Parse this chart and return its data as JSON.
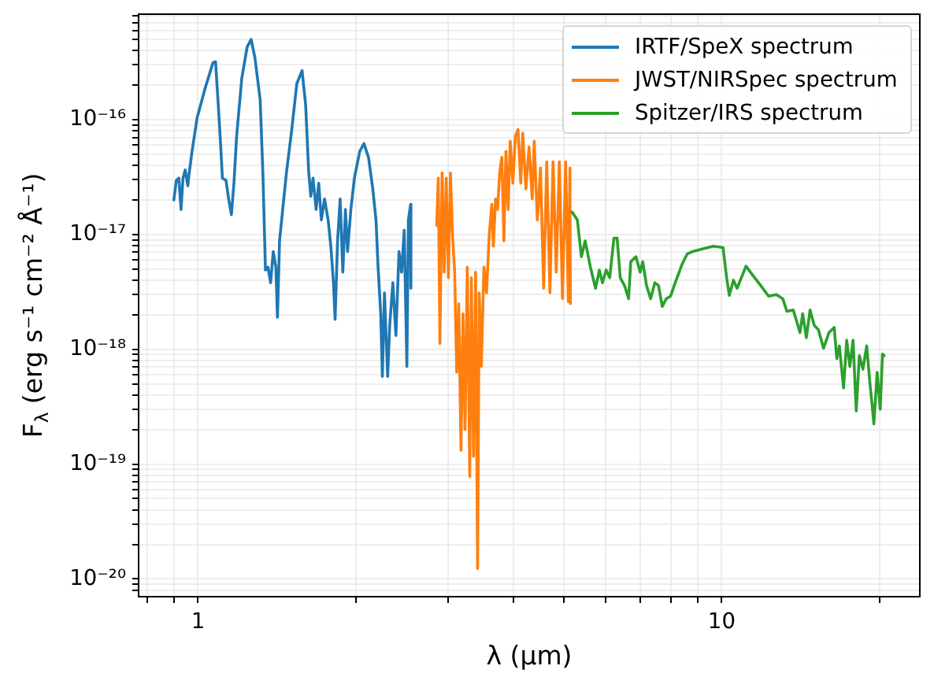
{
  "chart_data": {
    "type": "line",
    "xlabel": "λ (μm)",
    "ylabel": "F$_{λ}$ (erg s⁻¹ cm⁻² Å⁻¹)",
    "log": "xy",
    "grid": true,
    "legend": "top right",
    "xlim": [
      0.77,
      23.9
    ],
    "xticks": [
      {
        "value": 0.8,
        "label": null
      },
      {
        "value": 0.9,
        "label": null
      },
      1,
      {
        "value": 2,
        "label": null
      },
      {
        "value": 3,
        "label": null
      },
      {
        "value": 4,
        "label": null
      },
      {
        "value": 5,
        "label": null
      },
      {
        "value": 6,
        "label": null
      },
      {
        "value": 7,
        "label": null
      },
      {
        "value": 8,
        "label": null
      },
      {
        "value": 9,
        "label": null
      },
      10,
      {
        "value": 20,
        "label": null
      }
    ],
    "ylim": [
      7e-21,
      8.3e-16
    ],
    "yticks": [
      {
        "value": 8e-21,
        "label": null
      },
      {
        "value": 9e-21,
        "label": null
      },
      {
        "value": 1e-20,
        "label": "10⁻²⁰"
      },
      {
        "value": 2e-20,
        "label": null
      },
      {
        "value": 3e-20,
        "label": null
      },
      {
        "value": 4e-20,
        "label": null
      },
      {
        "value": 5e-20,
        "label": null
      },
      {
        "value": 6e-20,
        "label": null
      },
      {
        "value": 7e-20,
        "label": null
      },
      {
        "value": 8e-20,
        "label": null
      },
      {
        "value": 9e-20,
        "label": null
      },
      {
        "value": 1e-19,
        "label": "10⁻¹⁹"
      },
      {
        "value": 2e-19,
        "label": null
      },
      {
        "value": 3e-19,
        "label": null
      },
      {
        "value": 4e-19,
        "label": null
      },
      {
        "value": 5e-19,
        "label": null
      },
      {
        "value": 6e-19,
        "label": null
      },
      {
        "value": 7e-19,
        "label": null
      },
      {
        "value": 8e-19,
        "label": null
      },
      {
        "value": 9e-19,
        "label": null
      },
      {
        "value": 1e-18,
        "label": "10⁻¹⁸"
      },
      {
        "value": 2e-18,
        "label": null
      },
      {
        "value": 3e-18,
        "label": null
      },
      {
        "value": 4e-18,
        "label": null
      },
      {
        "value": 5e-18,
        "label": null
      },
      {
        "value": 6e-18,
        "label": null
      },
      {
        "value": 7e-18,
        "label": null
      },
      {
        "value": 8e-18,
        "label": null
      },
      {
        "value": 9e-18,
        "label": null
      },
      {
        "value": 1e-17,
        "label": "10⁻¹⁷"
      },
      {
        "value": 2e-17,
        "label": null
      },
      {
        "value": 3e-17,
        "label": null
      },
      {
        "value": 4e-17,
        "label": null
      },
      {
        "value": 5e-17,
        "label": null
      },
      {
        "value": 6e-17,
        "label": null
      },
      {
        "value": 7e-17,
        "label": null
      },
      {
        "value": 8e-17,
        "label": null
      },
      {
        "value": 9e-17,
        "label": null
      },
      {
        "value": 1e-16,
        "label": "10⁻¹⁶"
      },
      {
        "value": 2e-16,
        "label": null
      },
      {
        "value": 3e-16,
        "label": null
      },
      {
        "value": 4e-16,
        "label": null
      },
      {
        "value": 5e-16,
        "label": null
      },
      {
        "value": 6e-16,
        "label": null
      },
      {
        "value": 7e-16,
        "label": null
      },
      {
        "value": 8e-16,
        "label": null
      }
    ],
    "series": [
      {
        "name": "IRTF/SpeX spectrum",
        "color": "#1f77b4",
        "x": [
          0.899,
          0.909,
          0.919,
          0.928,
          0.936,
          0.945,
          0.956,
          0.962,
          0.974,
          0.996,
          1.031,
          1.068,
          1.08,
          1.093,
          1.105,
          1.113,
          1.131,
          1.144,
          1.158,
          1.171,
          1.185,
          1.212,
          1.241,
          1.263,
          1.284,
          1.314,
          1.33,
          1.345,
          1.36,
          1.376,
          1.392,
          1.408,
          1.418,
          1.431,
          1.451,
          1.475,
          1.509,
          1.544,
          1.58,
          1.605,
          1.627,
          1.642,
          1.658,
          1.681,
          1.7,
          1.72,
          1.744,
          1.772,
          1.793,
          1.814,
          1.827,
          1.847,
          1.868,
          1.89,
          1.912,
          1.93,
          1.958,
          1.989,
          2.036,
          2.074,
          2.116,
          2.156,
          2.187,
          2.207,
          2.233,
          2.249,
          2.27,
          2.302,
          2.323,
          2.355,
          2.387,
          2.42,
          2.448,
          2.476,
          2.505,
          2.522,
          2.547,
          2.55
        ],
        "values": [
          2e-17,
          2.95e-17,
          3.1e-17,
          1.65e-17,
          3.1e-17,
          3.65e-17,
          2.66e-17,
          3.45e-17,
          5.3e-17,
          1.04e-16,
          1.86e-16,
          3.14e-16,
          3.2e-16,
          1.35e-16,
          5.8e-17,
          3.1e-17,
          2.95e-17,
          2.04e-17,
          1.49e-17,
          2.8e-17,
          7.2e-17,
          2.29e-16,
          4.3e-16,
          5e-16,
          3.48e-16,
          1.5e-16,
          3.45e-17,
          4.9e-18,
          5.2e-18,
          3.8e-18,
          7.1e-18,
          5.2e-18,
          1.9e-18,
          8.8e-18,
          1.65e-17,
          3.45e-17,
          8e-17,
          2.06e-16,
          2.68e-16,
          1.35e-16,
          3.45e-17,
          2.15e-17,
          3.1e-17,
          1.65e-17,
          2.8e-17,
          1.34e-17,
          2.04e-17,
          1.34e-17,
          7.9e-18,
          3.8e-18,
          1.82e-18,
          8.8e-18,
          2.04e-17,
          4.7e-18,
          1.65e-17,
          7.1e-18,
          1.65e-17,
          3.1e-17,
          5.3e-17,
          6.2e-17,
          4.7e-17,
          2.5e-17,
          1.34e-17,
          5.2e-18,
          2.04e-18,
          5.8e-19,
          3.1e-18,
          5.8e-19,
          1.62e-18,
          3.8e-18,
          1.32e-18,
          7.1e-18,
          4.7e-18,
          1.09e-17,
          7.1e-19,
          1.34e-17,
          1.83e-17,
          3.4e-18
        ]
      },
      {
        "name": "JWST/NIRSpec spectrum",
        "color": "#ff7f0e",
        "x": [
          2.856,
          2.876,
          2.897,
          2.925,
          2.951,
          2.978,
          3.007,
          3.034,
          3.062,
          3.091,
          3.119,
          3.147,
          3.178,
          3.206,
          3.235,
          3.267,
          3.303,
          3.326,
          3.358,
          3.388,
          3.419,
          3.443,
          3.476,
          3.515,
          3.556,
          3.598,
          3.639,
          3.664,
          3.7,
          3.733,
          3.767,
          3.804,
          3.838,
          3.873,
          3.911,
          3.946,
          3.993,
          4.036,
          4.084,
          4.133,
          4.17,
          4.228,
          4.287,
          4.347,
          4.385,
          4.446,
          4.508,
          4.571,
          4.634,
          4.699,
          4.764,
          4.831,
          4.898,
          4.966,
          5.035,
          5.095,
          5.131,
          5.142
        ],
        "values": [
          1.2e-17,
          3.1e-17,
          1.12e-18,
          3.45e-17,
          4.7e-18,
          3.1e-17,
          4.2e-18,
          3.45e-17,
          9.8e-18,
          4.7e-18,
          6.3e-19,
          2.5e-18,
          1.32e-19,
          2.04e-18,
          2e-19,
          5.2e-18,
          7.8e-20,
          4.2e-18,
          1.17e-19,
          4.7e-18,
          1.23e-20,
          3.1e-18,
          7.1e-19,
          5.2e-18,
          3.1e-18,
          9.8e-18,
          1.83e-17,
          7.9e-18,
          2.04e-17,
          1.65e-17,
          3.45e-17,
          4.7e-17,
          8.8e-18,
          5.3e-17,
          1.65e-17,
          6.5e-17,
          2.8e-17,
          7.2e-17,
          8.2e-17,
          2.8e-17,
          7.6e-17,
          2.5e-17,
          5.8e-17,
          2.04e-17,
          6.5e-17,
          1.34e-17,
          3.8e-17,
          3.4e-18,
          4.3e-17,
          3.1e-18,
          4.3e-17,
          4.7e-18,
          4.3e-17,
          2.76e-18,
          4.3e-17,
          2.6e-18,
          3.8e-17,
          2.5e-18
        ]
      },
      {
        "name": "Spitzer/IRS spectrum",
        "color": "#2ca02c",
        "x": [
          5.178,
          5.301,
          5.397,
          5.487,
          5.614,
          5.743,
          5.84,
          5.921,
          6.016,
          6.112,
          6.227,
          6.314,
          6.402,
          6.522,
          6.641,
          6.705,
          6.86,
          6.989,
          7.067,
          7.185,
          7.316,
          7.454,
          7.574,
          7.7,
          7.84,
          7.988,
          8.116,
          8.251,
          8.401,
          8.6,
          8.799,
          9.218,
          9.647,
          10.06,
          10.22,
          10.34,
          10.53,
          10.7,
          11.13,
          11.47,
          11.87,
          12.29,
          12.72,
          13.08,
          13.32,
          13.7,
          14.11,
          14.28,
          14.51,
          14.75,
          15.02,
          15.3,
          15.65,
          16.03,
          16.4,
          16.59,
          16.78,
          17.09,
          17.33,
          17.57,
          17.82,
          18.07,
          18.32,
          18.61,
          18.92,
          19.18,
          19.36,
          19.53,
          19.81,
          20.08,
          20.28,
          20.42
        ],
        "values": [
          1.57e-17,
          1.34e-17,
          6.4e-18,
          8.8e-18,
          5.2e-18,
          3.4e-18,
          4.9e-18,
          3.8e-18,
          4.9e-18,
          4.2e-18,
          9.3e-18,
          9.3e-18,
          4.2e-18,
          3.6e-18,
          2.76e-18,
          5.8e-18,
          6.4e-18,
          4.7e-18,
          5.8e-18,
          3.6e-18,
          2.76e-18,
          3.8e-18,
          3.6e-18,
          2.36e-18,
          2.76e-18,
          2.9e-18,
          3.6e-18,
          4.4e-18,
          5.5e-18,
          6.8e-18,
          7.1e-18,
          7.5e-18,
          7.9e-18,
          7.7e-18,
          4.2e-18,
          2.95e-18,
          4e-18,
          3.4e-18,
          5.3e-18,
          4.4e-18,
          3.6e-18,
          2.9e-18,
          3e-18,
          2.76e-18,
          2.14e-18,
          2.2e-18,
          1.4e-18,
          2.04e-18,
          1.26e-18,
          2.2e-18,
          1.62e-18,
          1.48e-18,
          1.02e-18,
          1.4e-18,
          1.55e-18,
          8.3e-19,
          1.07e-18,
          4.6e-19,
          1.2e-18,
          7.1e-19,
          1.2e-18,
          2.9e-19,
          8.8e-19,
          6.7e-19,
          1.07e-18,
          5.2e-19,
          3.4e-19,
          2.24e-19,
          6.3e-19,
          3e-19,
          9.1e-19,
          8.8e-19
        ]
      }
    ]
  }
}
